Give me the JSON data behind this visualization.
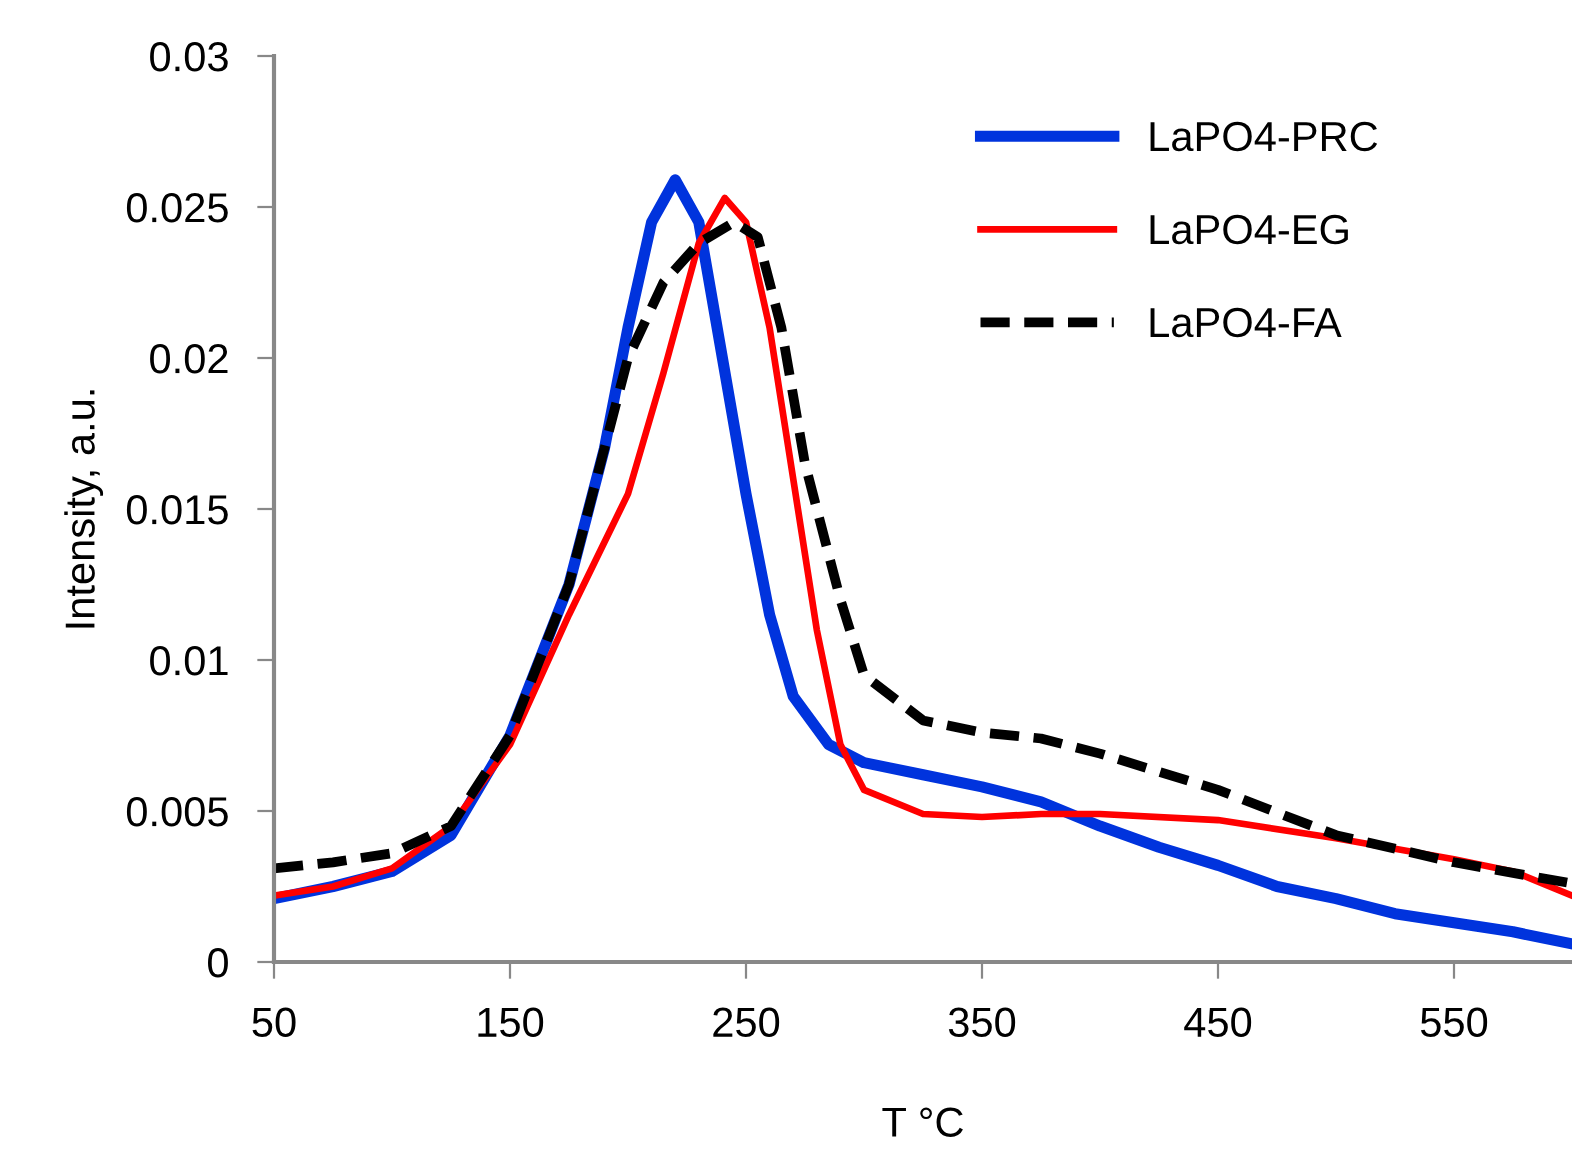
{
  "chart_data": {
    "type": "line",
    "xlabel": "T °C",
    "ylabel": "Intensity, a.u.",
    "xlim": [
      50,
      600
    ],
    "xticks": [
      50,
      150,
      250,
      350,
      450,
      550
    ],
    "ylim": [
      0,
      0.03
    ],
    "yticks": [
      0,
      0.005,
      0.01,
      0.015,
      0.02,
      0.025,
      0.03
    ],
    "grid": false,
    "legend": "top right",
    "series": [
      {
        "name": "LaPO4-PRC",
        "color": "#0033dd",
        "line_style": "solid",
        "x": [
          50,
          75,
          100,
          125,
          150,
          175,
          190,
          200,
          210,
          220,
          230,
          240,
          250,
          260,
          270,
          285,
          300,
          325,
          350,
          375,
          400,
          425,
          450,
          475,
          500,
          525,
          550,
          575,
          600
        ],
        "values": [
          0.0021,
          0.0025,
          0.003,
          0.0042,
          0.0075,
          0.0125,
          0.017,
          0.021,
          0.0245,
          0.0259,
          0.0245,
          0.02,
          0.0155,
          0.0115,
          0.0088,
          0.0072,
          0.0066,
          0.0062,
          0.0058,
          0.0053,
          0.0045,
          0.0038,
          0.0032,
          0.0025,
          0.0021,
          0.0016,
          0.0013,
          0.001,
          0.0006
        ]
      },
      {
        "name": "LaPO4-EG",
        "color": "#ff0000",
        "line_style": "solid",
        "x": [
          50,
          75,
          100,
          125,
          150,
          175,
          200,
          215,
          230,
          241,
          250,
          260,
          270,
          280,
          290,
          300,
          325,
          350,
          375,
          400,
          450,
          500,
          550,
          575,
          600
        ],
        "values": [
          0.0022,
          0.0025,
          0.0031,
          0.0045,
          0.0072,
          0.0115,
          0.0155,
          0.0195,
          0.0238,
          0.0253,
          0.0245,
          0.021,
          0.016,
          0.011,
          0.0072,
          0.0057,
          0.0049,
          0.0048,
          0.0049,
          0.0049,
          0.0047,
          0.0041,
          0.0034,
          0.003,
          0.0022
        ]
      },
      {
        "name": "LaPO4-FA",
        "color": "#000000",
        "line_style": "dashed",
        "x": [
          50,
          75,
          100,
          125,
          150,
          175,
          190,
          200,
          215,
          230,
          245,
          255,
          265,
          275,
          290,
          300,
          325,
          350,
          375,
          400,
          450,
          500,
          550,
          600
        ],
        "values": [
          0.0031,
          0.0033,
          0.0036,
          0.0045,
          0.0075,
          0.0125,
          0.017,
          0.02,
          0.0225,
          0.0238,
          0.0245,
          0.024,
          0.021,
          0.0165,
          0.012,
          0.0095,
          0.008,
          0.0076,
          0.0074,
          0.0069,
          0.0057,
          0.0042,
          0.0033,
          0.0026
        ]
      }
    ]
  }
}
